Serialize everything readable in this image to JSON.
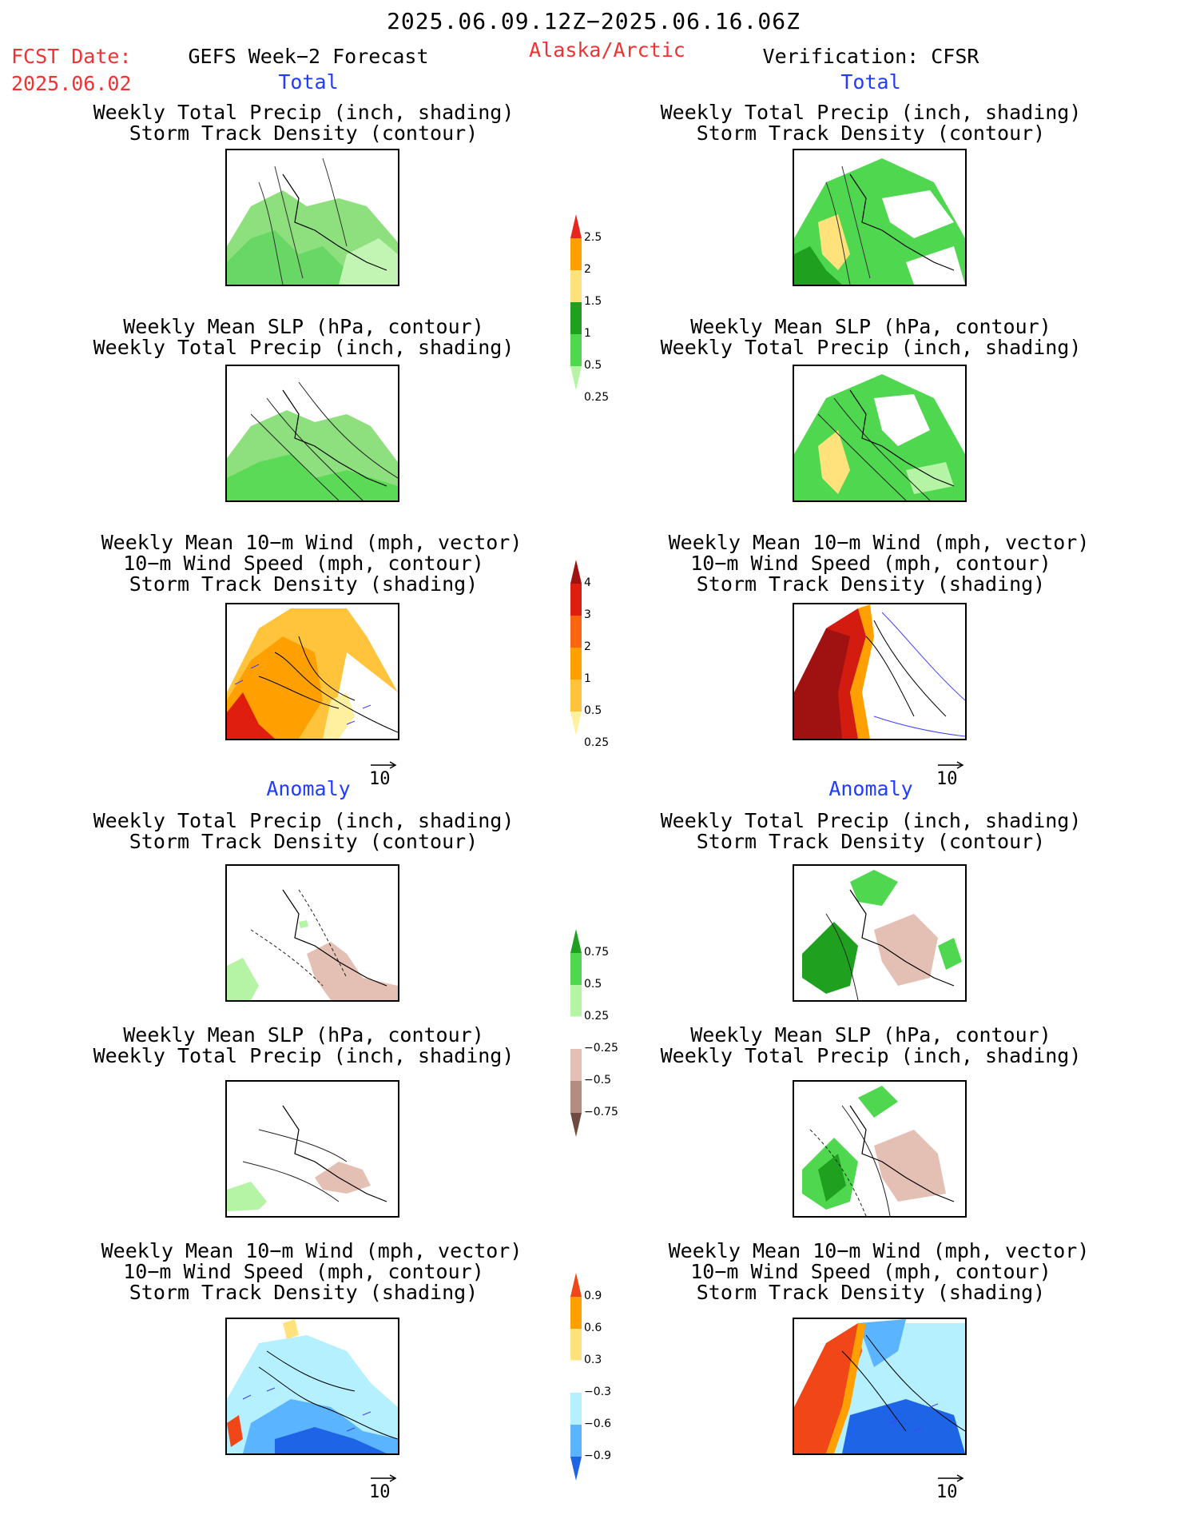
{
  "header": {
    "period": "2025.06.09.12Z−2025.06.16.06Z",
    "fcst_date_label": "FCST Date:",
    "fcst_date_value": "2025.06.02",
    "left_title": "GEFS Week−2 Forecast",
    "region": "Alaska/Arctic",
    "right_title": "Verification: CFSR"
  },
  "sections": {
    "total": "Total",
    "anomaly": "Anomaly"
  },
  "panel_titles": {
    "precip_track": [
      "Weekly Total Precip (inch, shading)",
      "Storm Track Density (contour)"
    ],
    "slp_precip": [
      "Weekly Mean SLP (hPa, contour)",
      "Weekly Total Precip (inch, shading)"
    ],
    "wind_track": [
      "Weekly Mean 10−m Wind (mph, vector)",
      "10−m Wind Speed (mph, contour)",
      "Storm Track Density (shading)"
    ]
  },
  "vector_key": "10",
  "colorbars": {
    "precip_total": {
      "labels": [
        "2.5",
        "2",
        "1.5",
        "1",
        "0.5",
        "0.25"
      ],
      "colors": [
        "#e8261e",
        "#ffa000",
        "#ffe27c",
        "#1fa01f",
        "#4fd84f",
        "#b4f4a4"
      ]
    },
    "track_total": {
      "labels": [
        "4",
        "3",
        "2",
        "1",
        "0.5",
        "0.25"
      ],
      "colors": [
        "#a01212",
        "#e01e10",
        "#ff6410",
        "#ffa000",
        "#ffc43c",
        "#fff0a0"
      ]
    },
    "precip_anom": {
      "labels": [
        "0.75",
        "0.5",
        "0.25",
        "−0.25",
        "−0.5",
        "−0.75"
      ],
      "colors": [
        "#1fa01f",
        "#4fd84f",
        "#b4f4a4",
        "#ffffff",
        "#e4c0b4",
        "#b48c80",
        "#6e4a40"
      ]
    },
    "track_anom": {
      "labels": [
        "0.9",
        "0.6",
        "0.3",
        "−0.3",
        "−0.6",
        "−0.9"
      ],
      "colors": [
        "#f04618",
        "#ffa000",
        "#ffe27c",
        "#ffffff",
        "#b4f0ff",
        "#5ab4ff",
        "#1e64e6"
      ]
    }
  }
}
